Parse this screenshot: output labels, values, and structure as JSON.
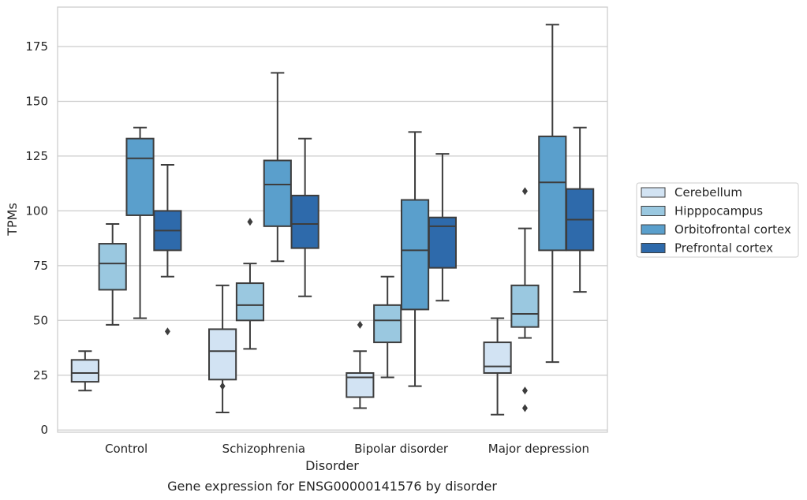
{
  "chart_data": {
    "type": "box",
    "xlabel": "Disorder",
    "ylabel": "TPMs",
    "caption": "Gene expression for ENSG00000141576 by disorder",
    "categories": [
      "Control",
      "Schizophrenia",
      "Bipolar disorder",
      "Major depression"
    ],
    "ylim": [
      -1,
      193
    ],
    "yticks": [
      0,
      25,
      50,
      75,
      100,
      125,
      150,
      175
    ],
    "grid": "horizontal",
    "legend_position": "right",
    "series": [
      {
        "name": "Cerebellum",
        "color": "#d2e3f3",
        "boxes": [
          {
            "whisker_low": 18,
            "q1": 22,
            "median": 26,
            "q3": 32,
            "whisker_high": 36,
            "outliers": []
          },
          {
            "whisker_low": 8,
            "q1": 23,
            "median": 36,
            "q3": 46,
            "whisker_high": 66,
            "outliers": [
              20
            ]
          },
          {
            "whisker_low": 10,
            "q1": 15,
            "median": 24,
            "q3": 26,
            "whisker_high": 36,
            "outliers": [
              48
            ]
          },
          {
            "whisker_low": 7,
            "q1": 26,
            "median": 29,
            "q3": 40,
            "whisker_high": 51,
            "outliers": []
          }
        ]
      },
      {
        "name": "Hipppocampus",
        "color": "#9ac8e0",
        "boxes": [
          {
            "whisker_low": 48,
            "q1": 64,
            "median": 76,
            "q3": 85,
            "whisker_high": 94,
            "outliers": []
          },
          {
            "whisker_low": 37,
            "q1": 50,
            "median": 57,
            "q3": 67,
            "whisker_high": 76,
            "outliers": [
              95
            ]
          },
          {
            "whisker_low": 24,
            "q1": 40,
            "median": 50,
            "q3": 57,
            "whisker_high": 70,
            "outliers": []
          },
          {
            "whisker_low": 42,
            "q1": 47,
            "median": 53,
            "q3": 66,
            "whisker_high": 92,
            "outliers": [
              109,
              18,
              10
            ]
          }
        ]
      },
      {
        "name": "Orbitofrontal cortex",
        "color": "#5a9fcc",
        "boxes": [
          {
            "whisker_low": 51,
            "q1": 98,
            "median": 124,
            "q3": 133,
            "whisker_high": 138,
            "outliers": []
          },
          {
            "whisker_low": 77,
            "q1": 93,
            "median": 112,
            "q3": 123,
            "whisker_high": 163,
            "outliers": []
          },
          {
            "whisker_low": 20,
            "q1": 55,
            "median": 82,
            "q3": 105,
            "whisker_high": 136,
            "outliers": []
          },
          {
            "whisker_low": 31,
            "q1": 82,
            "median": 113,
            "q3": 134,
            "whisker_high": 185,
            "outliers": []
          }
        ]
      },
      {
        "name": "Prefrontal cortex",
        "color": "#2e6aab",
        "boxes": [
          {
            "whisker_low": 70,
            "q1": 82,
            "median": 91,
            "q3": 100,
            "whisker_high": 121,
            "outliers": [
              45
            ]
          },
          {
            "whisker_low": 61,
            "q1": 83,
            "median": 94,
            "q3": 107,
            "whisker_high": 133,
            "outliers": []
          },
          {
            "whisker_low": 59,
            "q1": 74,
            "median": 93,
            "q3": 97,
            "whisker_high": 126,
            "outliers": []
          },
          {
            "whisker_low": 63,
            "q1": 82,
            "median": 96,
            "q3": 110,
            "whisker_high": 138,
            "outliers": []
          }
        ]
      }
    ]
  }
}
